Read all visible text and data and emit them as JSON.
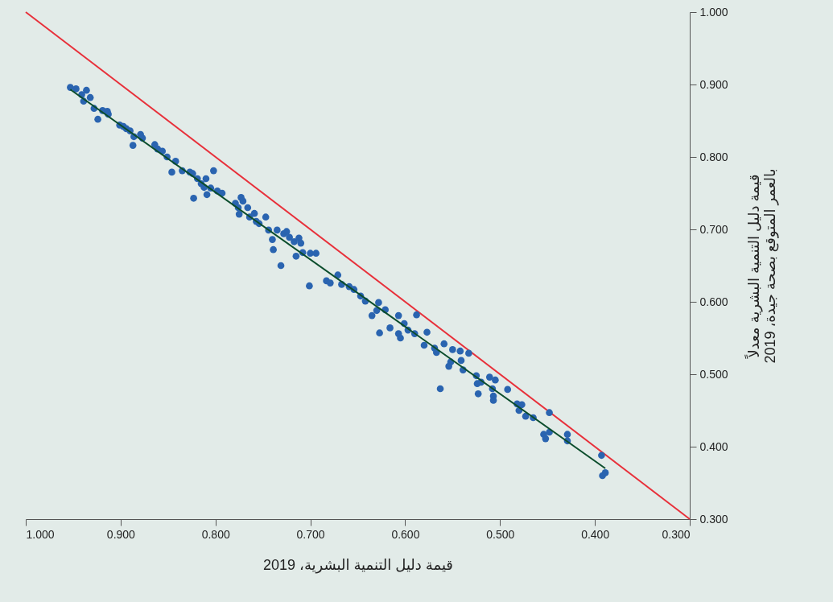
{
  "chart_data": {
    "type": "scatter",
    "xlabel": "قيمة دليل التنمية البشرية، 2019",
    "ylabel": "قيمة دليل التنمية البشرية معدلاً\nبالعمر المتوقع بصحة جيدة، 2019",
    "xlim": [
      1.0,
      0.3
    ],
    "ylim": [
      0.3,
      1.0
    ],
    "xticks": [
      {
        "value": 1.0,
        "label": "1.000"
      },
      {
        "value": 0.9,
        "label": "0.900"
      },
      {
        "value": 0.8,
        "label": "0.800"
      },
      {
        "value": 0.7,
        "label": "0.700"
      },
      {
        "value": 0.6,
        "label": "0.600"
      },
      {
        "value": 0.5,
        "label": "0.500"
      },
      {
        "value": 0.4,
        "label": "0.400"
      },
      {
        "value": 0.3,
        "label": "0.300"
      }
    ],
    "yticks": [
      {
        "value": 0.3,
        "label": "0.300"
      },
      {
        "value": 0.4,
        "label": "0.400"
      },
      {
        "value": 0.5,
        "label": "0.500"
      },
      {
        "value": 0.6,
        "label": "0.600"
      },
      {
        "value": 0.7,
        "label": "0.700"
      },
      {
        "value": 0.8,
        "label": "0.800"
      },
      {
        "value": 0.9,
        "label": "0.900"
      },
      {
        "value": 1.0,
        "label": "1.000"
      }
    ],
    "grid": false,
    "series": [
      {
        "type": "line",
        "color": "#e8303a",
        "x": [
          1.0,
          0.3
        ],
        "values": [
          1.0,
          0.3
        ]
      },
      {
        "color": "#2a64b0",
        "x": [
          0.953,
          0.947,
          0.936,
          0.941,
          0.939,
          0.932,
          0.928,
          0.924,
          0.919,
          0.914,
          0.913,
          0.901,
          0.897,
          0.894,
          0.89,
          0.886,
          0.887,
          0.879,
          0.877,
          0.864,
          0.861,
          0.856,
          0.851,
          0.846,
          0.842,
          0.835,
          0.827,
          0.824,
          0.823,
          0.819,
          0.815,
          0.812,
          0.809,
          0.81,
          0.802,
          0.805,
          0.798,
          0.793,
          0.779,
          0.776,
          0.775,
          0.773,
          0.771,
          0.766,
          0.764,
          0.759,
          0.757,
          0.754,
          0.747,
          0.744,
          0.74,
          0.739,
          0.735,
          0.731,
          0.728,
          0.725,
          0.722,
          0.717,
          0.715,
          0.712,
          0.71,
          0.708,
          0.7,
          0.701,
          0.694,
          0.683,
          0.679,
          0.671,
          0.667,
          0.659,
          0.654,
          0.647,
          0.642,
          0.635,
          0.63,
          0.627,
          0.628,
          0.621,
          0.616,
          0.607,
          0.588,
          0.601,
          0.597,
          0.607,
          0.605,
          0.59,
          0.577,
          0.58,
          0.569,
          0.559,
          0.567,
          0.563,
          0.55,
          0.542,
          0.533,
          0.552,
          0.554,
          0.541,
          0.539,
          0.525,
          0.524,
          0.52,
          0.511,
          0.505,
          0.523,
          0.508,
          0.507,
          0.507,
          0.492,
          0.482,
          0.477,
          0.48,
          0.473,
          0.465,
          0.448,
          0.454,
          0.452,
          0.448,
          0.429,
          0.429,
          0.393,
          0.392,
          0.389
        ],
        "values": [
          0.896,
          0.894,
          0.892,
          0.886,
          0.877,
          0.882,
          0.867,
          0.852,
          0.864,
          0.863,
          0.859,
          0.844,
          0.842,
          0.839,
          0.836,
          0.828,
          0.816,
          0.831,
          0.826,
          0.817,
          0.811,
          0.808,
          0.8,
          0.779,
          0.794,
          0.781,
          0.779,
          0.777,
          0.743,
          0.77,
          0.763,
          0.758,
          0.748,
          0.77,
          0.781,
          0.757,
          0.753,
          0.75,
          0.736,
          0.73,
          0.721,
          0.744,
          0.739,
          0.73,
          0.717,
          0.722,
          0.711,
          0.708,
          0.717,
          0.699,
          0.686,
          0.672,
          0.699,
          0.65,
          0.694,
          0.697,
          0.689,
          0.683,
          0.663,
          0.688,
          0.681,
          0.668,
          0.667,
          0.622,
          0.667,
          0.629,
          0.626,
          0.637,
          0.624,
          0.621,
          0.617,
          0.608,
          0.601,
          0.581,
          0.588,
          0.557,
          0.599,
          0.589,
          0.564,
          0.581,
          0.582,
          0.57,
          0.561,
          0.556,
          0.55,
          0.556,
          0.558,
          0.54,
          0.536,
          0.542,
          0.53,
          0.48,
          0.534,
          0.532,
          0.529,
          0.517,
          0.511,
          0.519,
          0.506,
          0.498,
          0.487,
          0.489,
          0.496,
          0.492,
          0.473,
          0.48,
          0.47,
          0.464,
          0.479,
          0.459,
          0.458,
          0.45,
          0.442,
          0.44,
          0.447,
          0.417,
          0.411,
          0.42,
          0.417,
          0.408,
          0.388,
          0.36,
          0.364
        ]
      },
      {
        "type": "line",
        "color": "#0b4d2c",
        "x": [
          0.953,
          0.389
        ],
        "values": [
          0.893,
          0.37
        ]
      }
    ]
  }
}
